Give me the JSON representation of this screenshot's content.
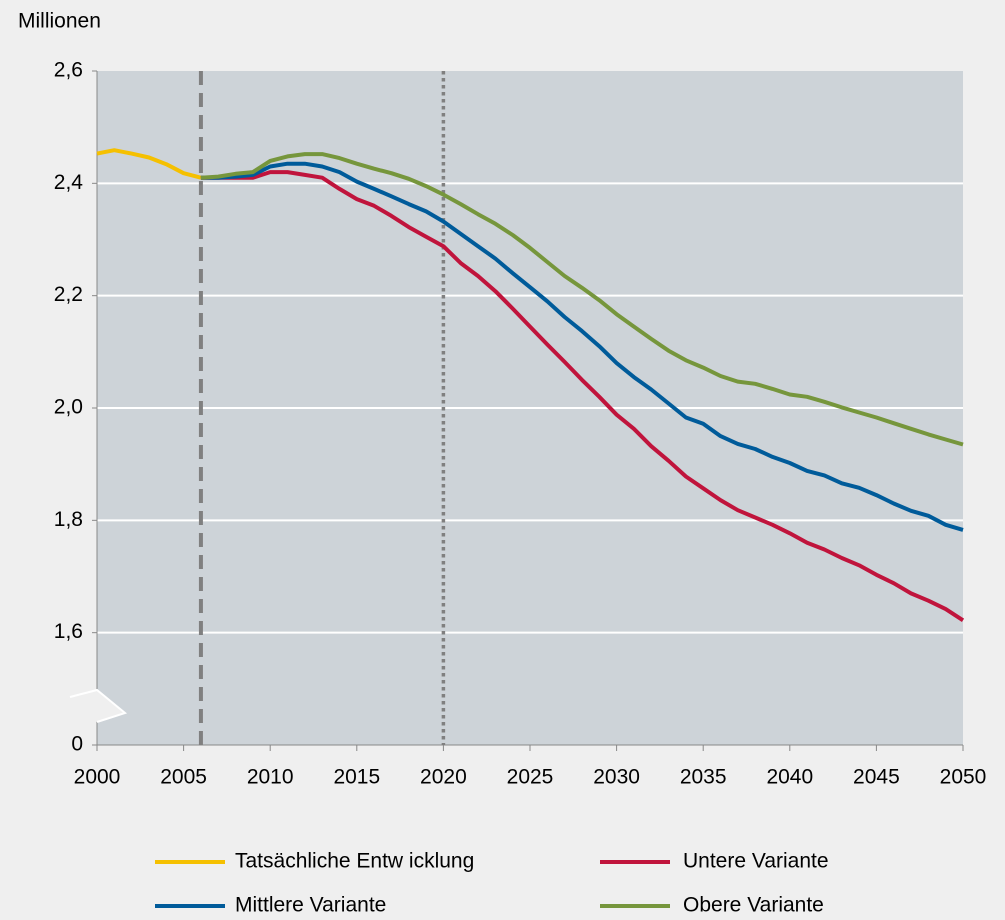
{
  "chart_data": {
    "type": "line",
    "ylabel": "Millionen",
    "x": [
      2000,
      2001,
      2002,
      2003,
      2004,
      2005,
      2006,
      2007,
      2008,
      2009,
      2010,
      2011,
      2012,
      2013,
      2014,
      2015,
      2016,
      2017,
      2018,
      2019,
      2020,
      2021,
      2022,
      2023,
      2024,
      2025,
      2026,
      2027,
      2028,
      2029,
      2030,
      2031,
      2032,
      2033,
      2034,
      2035,
      2036,
      2037,
      2038,
      2039,
      2040,
      2041,
      2042,
      2043,
      2044,
      2045,
      2046,
      2047,
      2048,
      2049,
      2050
    ],
    "series": [
      {
        "name": "Tatsächliche Entw icklung",
        "color": "#f5c000",
        "values": [
          2.453,
          2.459,
          2.453,
          2.446,
          2.434,
          2.418,
          2.41,
          null,
          null,
          null,
          null,
          null,
          null,
          null,
          null,
          null,
          null,
          null,
          null,
          null,
          null,
          null,
          null,
          null,
          null,
          null,
          null,
          null,
          null,
          null,
          null,
          null,
          null,
          null,
          null,
          null,
          null,
          null,
          null,
          null,
          null,
          null,
          null,
          null,
          null,
          null,
          null,
          null,
          null,
          null,
          null
        ]
      },
      {
        "name": "Untere Variante",
        "color": "#c0143c",
        "values": [
          null,
          null,
          null,
          null,
          null,
          null,
          2.41,
          2.41,
          2.41,
          2.41,
          2.42,
          2.42,
          2.415,
          2.41,
          2.39,
          2.372,
          2.36,
          2.342,
          2.322,
          2.305,
          2.288,
          2.258,
          2.235,
          2.208,
          2.177,
          2.145,
          2.113,
          2.082,
          2.05,
          2.02,
          1.988,
          1.963,
          1.932,
          1.906,
          1.878,
          1.857,
          1.836,
          1.818,
          1.805,
          1.792,
          1.777,
          1.76,
          1.748,
          1.733,
          1.72,
          1.703,
          1.688,
          1.67,
          1.657,
          1.642,
          1.622
        ]
      },
      {
        "name": "Mittlere Variante",
        "color": "#005b9a",
        "values": [
          null,
          null,
          null,
          null,
          null,
          null,
          2.41,
          2.41,
          2.412,
          2.415,
          2.43,
          2.435,
          2.435,
          2.43,
          2.42,
          2.403,
          2.39,
          2.377,
          2.363,
          2.35,
          2.332,
          2.31,
          2.288,
          2.266,
          2.24,
          2.215,
          2.19,
          2.162,
          2.137,
          2.11,
          2.08,
          2.055,
          2.033,
          2.008,
          1.983,
          1.972,
          1.95,
          1.936,
          1.927,
          1.913,
          1.902,
          1.888,
          1.88,
          1.866,
          1.858,
          1.845,
          1.83,
          1.817,
          1.808,
          1.792,
          1.783
        ]
      },
      {
        "name": "Obere Variante",
        "color": "#76963c",
        "values": [
          null,
          null,
          null,
          null,
          null,
          null,
          2.41,
          2.412,
          2.417,
          2.42,
          2.44,
          2.448,
          2.452,
          2.452,
          2.445,
          2.435,
          2.426,
          2.418,
          2.408,
          2.395,
          2.38,
          2.363,
          2.345,
          2.328,
          2.308,
          2.285,
          2.26,
          2.235,
          2.214,
          2.192,
          2.167,
          2.145,
          2.123,
          2.102,
          2.085,
          2.072,
          2.057,
          2.047,
          2.043,
          2.034,
          2.024,
          2.02,
          2.011,
          2.001,
          1.992,
          1.983,
          1.973,
          1.963,
          1.953,
          1.944,
          1.935
        ]
      }
    ],
    "xlim": [
      2000,
      2050
    ],
    "xticks": [
      2000,
      2005,
      2010,
      2015,
      2020,
      2025,
      2030,
      2035,
      2040,
      2045,
      2050
    ],
    "ylim": [
      1.4,
      2.6
    ],
    "yticks": [
      0,
      {
        "value": 1.6,
        "label": "1,6"
      },
      {
        "value": 1.8,
        "label": "1,8"
      },
      {
        "value": 2.0,
        "label": "2,0"
      },
      {
        "value": 2.2,
        "label": "2,2"
      },
      {
        "value": 2.4,
        "label": "2,4"
      },
      {
        "value": 2.6,
        "label": "2,6"
      }
    ],
    "axis_break": true,
    "grid": true,
    "vlines": [
      {
        "x": 2006,
        "style": "dashed"
      },
      {
        "x": 2020,
        "style": "dotted"
      }
    ],
    "legend": "bottom"
  }
}
